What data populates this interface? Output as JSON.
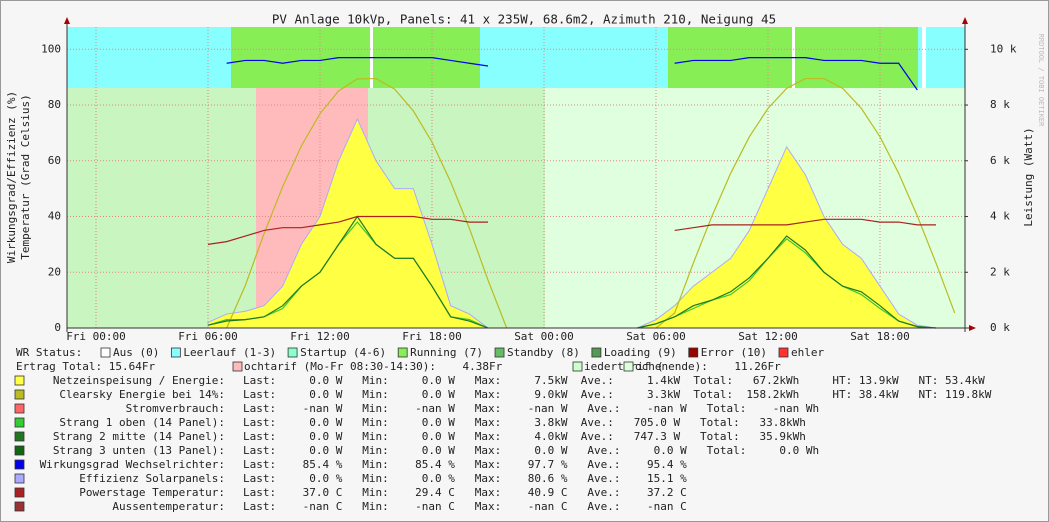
{
  "chart_data": {
    "type": "line",
    "title": "PV Anlage 10kVp, Panels: 41 x 235W, 68.6m2, Azimuth 210, Neigung 45",
    "y_label": [
      "Wirkungsgrad/Effizienz (%)",
      "Temperatur (Grad Celsius)"
    ],
    "y2_label": "Leistung (Watt)",
    "watermark": "RRDTOOL / TOBI OETIKER",
    "x": [
      "Fri 00:00",
      "Fri 01:00",
      "Fri 02:00",
      "Fri 03:00",
      "Fri 04:00",
      "Fri 05:00",
      "Fri 06:00",
      "Fri 07:00",
      "Fri 08:00",
      "Fri 09:00",
      "Fri 10:00",
      "Fri 11:00",
      "Fri 12:00",
      "Fri 13:00",
      "Fri 14:00",
      "Fri 15:00",
      "Fri 16:00",
      "Fri 17:00",
      "Fri 18:00",
      "Fri 19:00",
      "Fri 20:00",
      "Fri 21:00",
      "Fri 22:00",
      "Fri 23:00",
      "Sat 00:00",
      "Sat 01:00",
      "Sat 02:00",
      "Sat 03:00",
      "Sat 04:00",
      "Sat 05:00",
      "Sat 06:00",
      "Sat 07:00",
      "Sat 08:00",
      "Sat 09:00",
      "Sat 10:00",
      "Sat 11:00",
      "Sat 12:00",
      "Sat 13:00",
      "Sat 14:00",
      "Sat 15:00",
      "Sat 16:00",
      "Sat 17:00",
      "Sat 18:00",
      "Sat 19:00",
      "Sat 20:00",
      "Sat 21:00",
      "Sat 22:00"
    ],
    "xticks": [
      "Fri 00:00",
      "Fri 06:00",
      "Fri 12:00",
      "Fri 18:00",
      "Sat 00:00",
      "Sat 06:00",
      "Sat 12:00",
      "Sat 18:00"
    ],
    "ylim": [
      0,
      108
    ],
    "yticks": [
      0,
      20,
      40,
      60,
      80,
      100
    ],
    "y2lim": [
      0,
      10800
    ],
    "y2ticks": [
      {
        "value": 0,
        "label": "0 k"
      },
      {
        "value": 2000,
        "label": "2 k"
      },
      {
        "value": 4000,
        "label": "4 k"
      },
      {
        "value": 6000,
        "label": "6 k"
      },
      {
        "value": 8000,
        "label": "8 k"
      },
      {
        "value": 10000,
        "label": "10 k"
      }
    ],
    "grid": true,
    "series": [
      {
        "name": "Netzeinspeisung / Energie:",
        "color": "#ffff44",
        "style": "area",
        "axis": "y2",
        "stats": "Last:     0.0 W   Min:     0.0 W   Max:     7.5kW  Ave.:     1.4kW  Total:   67.2kWh     HT: 13.9kW   NT: 53.4kW",
        "values": [
          null,
          null,
          null,
          null,
          null,
          null,
          200,
          500,
          600,
          800,
          1500,
          3000,
          4000,
          6000,
          7500,
          6000,
          5000,
          5000,
          3000,
          800,
          500,
          0,
          null,
          null,
          null,
          null,
          null,
          null,
          null,
          0,
          300,
          800,
          1500,
          2000,
          2500,
          3500,
          5000,
          6500,
          5500,
          4000,
          3000,
          2500,
          1500,
          500,
          100,
          0,
          null
        ]
      },
      {
        "name": "Clearsky Energie bei 14%:",
        "color": "#bbbb22",
        "axis": "y2",
        "stats": "Last:     0.0 W   Min:     0.0 W   Max:     9.0kW  Ave.:     3.3kW  Total:  158.2kWh     HT: 38.4kW   NT: 119.8kW",
        "values": [
          null,
          null,
          null,
          null,
          null,
          null,
          null,
          0,
          1530,
          3380,
          5070,
          6530,
          7690,
          8510,
          8940,
          8950,
          8570,
          7790,
          6670,
          5240,
          3580,
          1720,
          0,
          null,
          null,
          null,
          null,
          null,
          null,
          null,
          0,
          540,
          2330,
          4020,
          5550,
          6860,
          7880,
          8600,
          8950,
          8950,
          8600,
          7880,
          6860,
          5550,
          4020,
          2330,
          540
        ]
      },
      {
        "name": "Stromverbrauch:",
        "color": "#ff6666",
        "stats": "Last:    -nan W   Min:    -nan W   Max:    -nan W   Ave.:    -nan W   Total:    -nan Wh"
      },
      {
        "name": "Strang 1 oben (14 Panel):",
        "color": "#33cc33",
        "axis": "y2",
        "stats": "Last:     0.0 W   Min:     0.0 W   Max:     3.8kW  Ave.:   705.0 W   Total:   33.8kWh",
        "values": [
          null,
          null,
          null,
          null,
          null,
          null,
          100,
          300,
          300,
          400,
          700,
          1500,
          2000,
          3000,
          3800,
          3000,
          2500,
          2500,
          1500,
          400,
          300,
          0,
          null,
          null,
          null,
          null,
          null,
          null,
          null,
          0,
          150,
          400,
          700,
          1000,
          1200,
          1700,
          2500,
          3200,
          2700,
          2000,
          1500,
          1200,
          700,
          250,
          50,
          0,
          null
        ]
      },
      {
        "name": "Strang 2 mitte (14 Panel):",
        "color": "#227722",
        "axis": "y2",
        "stats": "Last:     0.0 W   Min:     0.0 W   Max:     4.0kW  Ave.:   747.3 W   Total:   35.9kWh",
        "values": [
          null,
          null,
          null,
          null,
          null,
          null,
          100,
          250,
          300,
          400,
          800,
          1500,
          2000,
          3000,
          4000,
          3000,
          2500,
          2500,
          1500,
          400,
          250,
          0,
          null,
          null,
          null,
          null,
          null,
          null,
          null,
          0,
          150,
          400,
          800,
          1000,
          1300,
          1800,
          2500,
          3300,
          2800,
          2000,
          1500,
          1300,
          800,
          250,
          50,
          0,
          null
        ]
      },
      {
        "name": "Strang 3 unten (13 Panel):",
        "color": "#116611",
        "stats": "Last:     0.0 W   Min:     0.0 W   Max:     0.0 W   Ave.:     0.0 W   Total:     0.0 Wh"
      },
      {
        "name": "Wirkungsgrad Wechselrichter:",
        "color": "#0000ee",
        "stats": "Last:    85.4 %   Min:    85.4 %   Max:    97.7 %   Ave.:    95.4 %",
        "values": [
          null,
          null,
          null,
          null,
          null,
          null,
          null,
          95,
          96,
          96,
          95,
          96,
          96,
          97,
          97,
          97,
          97,
          97,
          97,
          96,
          95,
          94,
          null,
          null,
          null,
          null,
          null,
          null,
          null,
          null,
          null,
          95,
          96,
          96,
          96,
          97,
          97,
          97,
          97,
          96,
          96,
          96,
          95,
          95,
          85.4,
          null,
          null
        ]
      },
      {
        "name": "Effizienz Solarpanels:",
        "color": "#aaaaff",
        "stats": "Last:     0.0 %   Min:     0.0 %   Max:    80.6 %   Ave.:    15.1 %"
      },
      {
        "name": "Powerstage Temperatur:",
        "color": "#aa2222",
        "stats": "Last:    37.0 C   Min:    29.4 C   Max:    40.9 C   Ave.:    37.2 C",
        "values": [
          null,
          null,
          null,
          null,
          null,
          null,
          30,
          31,
          33,
          35,
          36,
          36,
          37,
          38,
          40,
          40,
          40,
          40,
          39,
          39,
          38,
          38,
          null,
          null,
          null,
          null,
          null,
          null,
          null,
          null,
          null,
          35,
          36,
          37,
          37,
          37,
          37,
          37,
          38,
          39,
          39,
          39,
          38,
          38,
          37,
          37,
          null
        ]
      },
      {
        "name": "Aussentemperatur:",
        "color": "#993333",
        "stats": "Last:    -nan C   Min:    -nan C   Max:    -nan C   Ave.:    -nan C"
      }
    ],
    "status": {
      "label": "WR Status:",
      "items": [
        {
          "label": "Aus (0)",
          "color": "#ffffff"
        },
        {
          "label": "Leerlauf (1-3)",
          "color": "#88ffff"
        },
        {
          "label": "Startup (4-6)",
          "color": "#88ffcc"
        },
        {
          "label": "Running (7)",
          "color": "#88ee55"
        },
        {
          "label": "Standby (8)",
          "color": "#66bb66"
        },
        {
          "label": "Loading (9)",
          "color": "#559955"
        },
        {
          "label": "Error (10)",
          "color": "#990000"
        },
        {
          "label": "ehler",
          "color": "#ff3333"
        }
      ]
    },
    "tariff": {
      "label": "Ertrag Total: 15.64Fr",
      "items": [
        {
          "label": "ochtarif (Mo-Fr 08:30-14:30):    4.38Fr",
          "color": "#ffbbbb"
        },
        {
          "label": "iedertarif (",
          "color": "#ccffcc"
        },
        {
          "label": "ochenende):    11.26Fr",
          "color": "#ddffdd"
        }
      ]
    }
  }
}
